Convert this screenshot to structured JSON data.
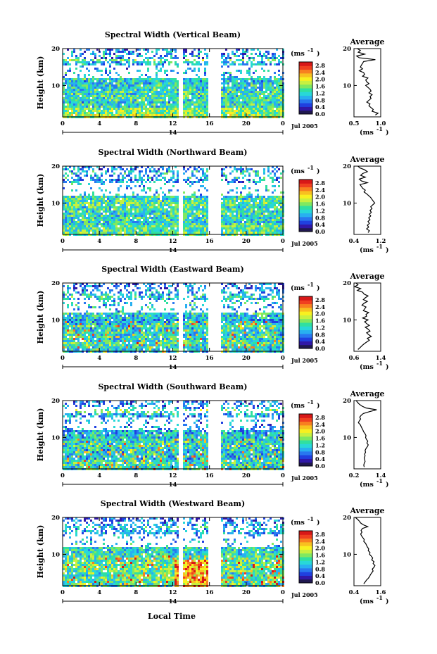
{
  "figure": {
    "x_axis_label": "Local Time",
    "date_label": "Jul 2005",
    "day_label": "14",
    "height_label": "Height (km)",
    "unit_label": "(ms",
    "unit_exp": "-1",
    "unit_close": ")",
    "average_title": "Average"
  },
  "colors": {
    "scale": [
      "#201850",
      "#3018a8",
      "#2040e0",
      "#2878f0",
      "#28b0f0",
      "#28d8d8",
      "#30e0a0",
      "#80e860",
      "#c8f040",
      "#f8f020",
      "#f8c020",
      "#f88020",
      "#f04020",
      "#d81818"
    ],
    "line": "#000000"
  },
  "chart_data": [
    {
      "type": "heatmap",
      "title": "Spectral Width (Vertical Beam)",
      "xlabel": "Local Time",
      "ylabel": "Height (km)",
      "x_ticks": [
        "0",
        "4",
        "8",
        "12",
        "16",
        "20",
        "0"
      ],
      "xlim": [
        0,
        24
      ],
      "y_ticks": [
        "20",
        "10"
      ],
      "ylim": [
        1.5,
        20
      ],
      "colorbar": {
        "unit": "(ms-1)",
        "ticks": [
          "2.8",
          "2.4",
          "2.0",
          "1.6",
          "1.2",
          "0.8",
          "0.4",
          "0.0"
        ],
        "range": [
          0,
          3.0
        ]
      },
      "data_gaps_hours": [
        [
          12.5,
          13.1
        ],
        [
          15.7,
          17.2
        ]
      ],
      "average_profile": {
        "title": "Average",
        "xlabel": "(ms-1)",
        "x_ticks": [
          "0.5",
          "1.0"
        ],
        "xlim": [
          0.5,
          1.0
        ],
        "y_ticks": [
          "20",
          "10"
        ],
        "height_km": [
          20,
          19.5,
          19,
          18.5,
          18,
          17.5,
          17,
          16.5,
          16,
          15.5,
          15,
          14.5,
          14,
          13.5,
          13,
          12.5,
          12,
          11.5,
          11,
          10.5,
          10,
          9.5,
          9,
          8.5,
          8,
          7.5,
          7,
          6.5,
          6,
          5.5,
          5,
          4.5,
          4,
          3.5,
          3,
          2.5,
          2
        ],
        "width_ms": [
          0.56,
          0.62,
          0.58,
          0.7,
          0.55,
          0.6,
          0.9,
          0.68,
          0.66,
          0.64,
          0.62,
          0.66,
          0.6,
          0.68,
          0.7,
          0.66,
          0.76,
          0.72,
          0.74,
          0.78,
          0.72,
          0.76,
          0.8,
          0.82,
          0.78,
          0.84,
          0.8,
          0.82,
          0.78,
          0.74,
          0.8,
          0.78,
          0.82,
          0.86,
          0.84,
          0.95,
          0.9
        ]
      }
    },
    {
      "type": "heatmap",
      "title": "Spectral Width (Northward Beam)",
      "xlabel": "Local Time",
      "ylabel": "Height (km)",
      "x_ticks": [
        "0",
        "4",
        "8",
        "12",
        "16",
        "20",
        "0"
      ],
      "xlim": [
        0,
        24
      ],
      "y_ticks": [
        "20",
        "10"
      ],
      "ylim": [
        1.5,
        20
      ],
      "colorbar": {
        "unit": "(ms-1)",
        "ticks": [
          "2.8",
          "2.4",
          "2.0",
          "1.6",
          "1.2",
          "0.8",
          "0.4",
          "0.0"
        ],
        "range": [
          0,
          3.0
        ]
      },
      "data_gaps_hours": [
        [
          12.5,
          13.1
        ],
        [
          15.7,
          17.2
        ]
      ],
      "average_profile": {
        "title": "Average",
        "xlabel": "(ms-1)",
        "x_ticks": [
          "0.4",
          "1.2"
        ],
        "xlim": [
          0.4,
          1.2
        ],
        "y_ticks": [
          "20",
          "10"
        ],
        "height_km": [
          20,
          19.5,
          19,
          18.5,
          18,
          17.5,
          17,
          16.5,
          16,
          15.5,
          15,
          14.5,
          14,
          13.5,
          13,
          12.5,
          12,
          11.5,
          11,
          10.5,
          10,
          9.5,
          9,
          8.5,
          8,
          7.5,
          7,
          6.5,
          6,
          5.5,
          5,
          4.5,
          4,
          3.5,
          3,
          2.5,
          2
        ],
        "width_ms": [
          0.52,
          0.58,
          0.72,
          0.8,
          0.66,
          0.6,
          0.74,
          0.56,
          0.62,
          0.8,
          0.58,
          0.62,
          0.66,
          0.74,
          0.7,
          0.78,
          0.84,
          0.9,
          0.94,
          0.98,
          1.02,
          0.96,
          0.9,
          0.94,
          0.88,
          0.92,
          0.86,
          0.9,
          0.84,
          0.88,
          0.82,
          0.86,
          0.8,
          0.84,
          0.78,
          0.86,
          0.82
        ]
      }
    },
    {
      "type": "heatmap",
      "title": "Spectral Width (Eastward Beam)",
      "xlabel": "Local Time",
      "ylabel": "Height (km)",
      "x_ticks": [
        "0",
        "4",
        "8",
        "12",
        "16",
        "20",
        "0"
      ],
      "xlim": [
        0,
        24
      ],
      "y_ticks": [
        "20",
        "10"
      ],
      "ylim": [
        1.5,
        20
      ],
      "colorbar": {
        "unit": "(ms-1)",
        "ticks": [
          "2.8",
          "2.4",
          "2.0",
          "1.6",
          "1.2",
          "0.8",
          "0.4",
          "0.0"
        ],
        "range": [
          0,
          3.0
        ]
      },
      "data_gaps_hours": [
        [
          12.5,
          13.1
        ],
        [
          15.7,
          17.2
        ]
      ],
      "average_profile": {
        "title": "Average",
        "xlabel": "(ms-1)",
        "x_ticks": [
          "0.6",
          "1.4"
        ],
        "xlim": [
          0.6,
          1.4
        ],
        "y_ticks": [
          "20",
          "10"
        ],
        "height_km": [
          20,
          19.5,
          19,
          18.5,
          18,
          17.5,
          17,
          16.5,
          16,
          15.5,
          15,
          14.5,
          14,
          13.5,
          13,
          12.5,
          12,
          11.5,
          11,
          10.5,
          10,
          9.5,
          9,
          8.5,
          8,
          7.5,
          7,
          6.5,
          6,
          5.5,
          5,
          4.5,
          4,
          3.5,
          3,
          2.5,
          2
        ],
        "width_ms": [
          0.66,
          0.72,
          0.62,
          0.8,
          0.7,
          0.86,
          0.9,
          1.02,
          0.94,
          0.88,
          1.0,
          0.9,
          0.84,
          0.96,
          0.92,
          0.88,
          1.04,
          0.96,
          0.98,
          0.86,
          1.02,
          0.92,
          0.98,
          1.06,
          0.94,
          1.02,
          1.08,
          0.98,
          1.04,
          1.12,
          1.0,
          1.06,
          0.98,
          0.9,
          0.84,
          0.78,
          0.72
        ]
      }
    },
    {
      "type": "heatmap",
      "title": "Spectral Width (Southward Beam)",
      "xlabel": "Local Time",
      "ylabel": "Height (km)",
      "x_ticks": [
        "0",
        "4",
        "8",
        "12",
        "16",
        "20",
        "0"
      ],
      "xlim": [
        0,
        24
      ],
      "y_ticks": [
        "20",
        "10"
      ],
      "ylim": [
        1.5,
        20
      ],
      "colorbar": {
        "unit": "(ms-1)",
        "ticks": [
          "2.8",
          "2.4",
          "2.0",
          "1.6",
          "1.2",
          "0.8",
          "0.4",
          "0.0"
        ],
        "range": [
          0,
          3.0
        ]
      },
      "data_gaps_hours": [
        [
          12.5,
          13.1
        ],
        [
          15.7,
          17.2
        ]
      ],
      "average_profile": {
        "title": "Average",
        "xlabel": "(ms-1)",
        "x_ticks": [
          "0.2",
          "1.4"
        ],
        "xlim": [
          0.2,
          1.4
        ],
        "y_ticks": [
          "20",
          "10"
        ],
        "height_km": [
          20,
          19.5,
          19,
          18.5,
          18,
          17.5,
          17,
          16.5,
          16,
          15.5,
          15,
          14.5,
          14,
          13.5,
          13,
          12.5,
          12,
          11.5,
          11,
          10.5,
          10,
          9.5,
          9,
          8.5,
          8,
          7.5,
          7,
          6.5,
          6,
          5.5,
          5,
          4.5,
          4,
          3.5,
          3,
          2.5,
          2
        ],
        "width_ms": [
          0.3,
          0.36,
          0.44,
          0.56,
          0.74,
          1.22,
          0.9,
          0.62,
          0.52,
          0.46,
          0.5,
          0.44,
          0.4,
          0.48,
          0.52,
          0.56,
          0.6,
          0.64,
          0.7,
          0.74,
          0.72,
          0.76,
          0.82,
          0.78,
          0.84,
          0.8,
          0.74,
          0.7,
          0.72,
          0.68,
          0.7,
          0.66,
          0.68,
          0.7,
          0.66,
          0.64,
          0.66
        ]
      }
    },
    {
      "type": "heatmap",
      "title": "Spectral Width (Westward Beam)",
      "xlabel": "Local Time",
      "ylabel": "Height (km)",
      "x_ticks": [
        "0",
        "4",
        "8",
        "12",
        "16",
        "20",
        "0"
      ],
      "xlim": [
        0,
        24
      ],
      "y_ticks": [
        "20",
        "10"
      ],
      "ylim": [
        1.5,
        20
      ],
      "colorbar": {
        "unit": "(ms-1)",
        "ticks": [
          "2.8",
          "2.4",
          "2.0",
          "1.6",
          "1.2",
          "0.8",
          "0.4",
          "0.0"
        ],
        "range": [
          0,
          3.0
        ]
      },
      "data_gaps_hours": [
        [
          12.5,
          13.1
        ],
        [
          15.7,
          17.2
        ]
      ],
      "average_profile": {
        "title": "Average",
        "xlabel": "(ms-1)",
        "x_ticks": [
          "0.4",
          "1.6"
        ],
        "xlim": [
          0.4,
          1.6
        ],
        "y_ticks": [
          "20",
          "10"
        ],
        "height_km": [
          20,
          19.5,
          19,
          18.5,
          18,
          17.5,
          17,
          16.5,
          16,
          15.5,
          15,
          14.5,
          14,
          13.5,
          13,
          12.5,
          12,
          11.5,
          11,
          10.5,
          10,
          9.5,
          9,
          8.5,
          8,
          7.5,
          7,
          6.5,
          6,
          5.5,
          5,
          4.5,
          4,
          3.5,
          3,
          2.5,
          2
        ],
        "width_ms": [
          0.46,
          0.56,
          0.64,
          0.7,
          0.82,
          1.02,
          0.78,
          0.72,
          0.76,
          0.7,
          0.74,
          0.8,
          0.86,
          0.84,
          0.92,
          0.96,
          1.0,
          1.06,
          1.04,
          1.12,
          1.1,
          1.18,
          1.24,
          1.2,
          1.3,
          1.26,
          1.34,
          1.3,
          1.22,
          1.26,
          1.2,
          1.14,
          1.1,
          1.04,
          0.96,
          0.9,
          0.84
        ]
      }
    }
  ]
}
